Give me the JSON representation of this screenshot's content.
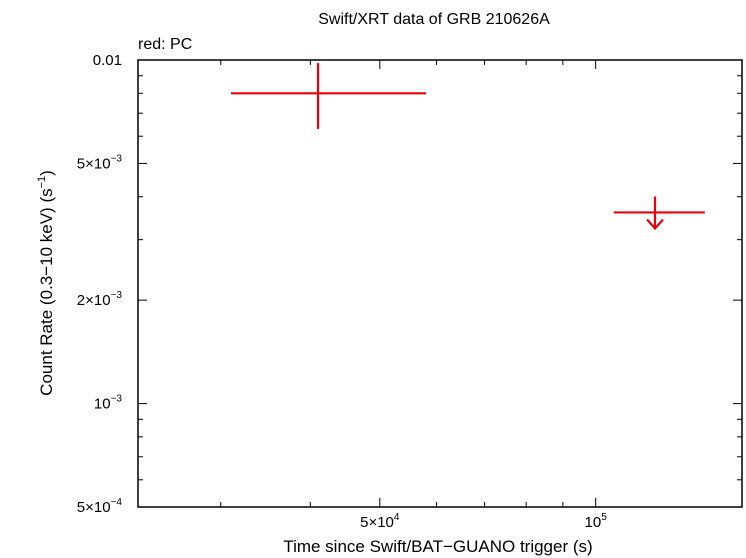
{
  "chart_data": {
    "type": "scatter",
    "title": "Swift/XRT data of GRB 210626A",
    "legend_text": "red: PC",
    "xlabel": "Time since Swift/BAT−GUANO trigger (s)",
    "ylabel": "Count Rate (0.3−10 keV) (s",
    "ylabel_sup": "−1",
    "ylabel_end": ")",
    "x_scale": "log",
    "y_scale": "log",
    "xlim": [
      23000,
      160000
    ],
    "ylim": [
      0.0005,
      0.01
    ],
    "grid": false,
    "x_ticks": [
      {
        "value": 50000,
        "mant": "5×10",
        "exp": "4"
      },
      {
        "value": 100000,
        "mant": "10",
        "exp": "5"
      }
    ],
    "y_ticks": [
      {
        "value": 0.01,
        "mant": "0.01",
        "exp": ""
      },
      {
        "value": 0.005,
        "mant": "5×10",
        "exp": "−3"
      },
      {
        "value": 0.002,
        "mant": "2×10",
        "exp": "−3"
      },
      {
        "value": 0.001,
        "mant": "10",
        "exp": "−3"
      },
      {
        "value": 0.0005,
        "mant": "5×10",
        "exp": "−4"
      }
    ],
    "color": "#e8000b",
    "series": [
      {
        "mode": "PC",
        "points": [
          {
            "x": 41000,
            "x_lo": 31000,
            "x_hi": 58000,
            "y": 0.008,
            "y_lo": 0.0063,
            "y_hi": 0.0098,
            "upper_limit": false
          },
          {
            "x": 121000,
            "x_lo": 106000,
            "x_hi": 142000,
            "y": 0.0036,
            "upper_limit": true
          }
        ]
      }
    ]
  }
}
